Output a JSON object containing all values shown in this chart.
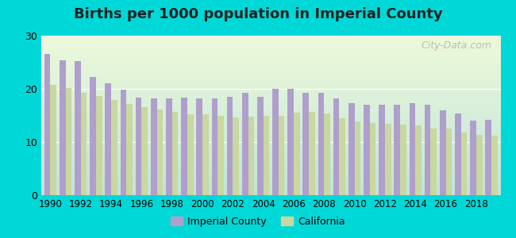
{
  "title": "Births per 1000 population in Imperial County",
  "years": [
    1990,
    1991,
    1992,
    1993,
    1994,
    1995,
    1996,
    1997,
    1998,
    1999,
    2000,
    2001,
    2002,
    2003,
    2004,
    2005,
    2006,
    2007,
    2008,
    2009,
    2010,
    2011,
    2012,
    2013,
    2014,
    2015,
    2016,
    2017,
    2018,
    2019
  ],
  "imperial_county": [
    26.5,
    25.3,
    25.2,
    22.2,
    21.0,
    19.9,
    18.4,
    18.2,
    18.2,
    18.3,
    18.2,
    18.2,
    18.5,
    19.3,
    18.5,
    20.0,
    20.0,
    19.3,
    19.3,
    18.2,
    17.3,
    17.0,
    17.0,
    17.0,
    17.3,
    17.0,
    15.9,
    15.3,
    14.0,
    14.2
  ],
  "california": [
    20.8,
    20.1,
    19.2,
    18.7,
    17.9,
    17.2,
    16.6,
    16.1,
    15.6,
    15.2,
    15.2,
    15.0,
    14.7,
    14.8,
    14.9,
    15.0,
    15.5,
    15.6,
    15.4,
    14.5,
    13.9,
    13.6,
    13.5,
    13.3,
    13.2,
    12.6,
    12.5,
    11.8,
    11.3,
    11.2
  ],
  "imperial_color": "#b09fcc",
  "california_color": "#c8d8a0",
  "outer_background": "#00d8d8",
  "ylim": [
    0,
    30
  ],
  "yticks": [
    0,
    10,
    20,
    30
  ],
  "bar_width": 0.4,
  "watermark": "City-Data.com",
  "legend_imperial": "Imperial County",
  "legend_california": "California"
}
